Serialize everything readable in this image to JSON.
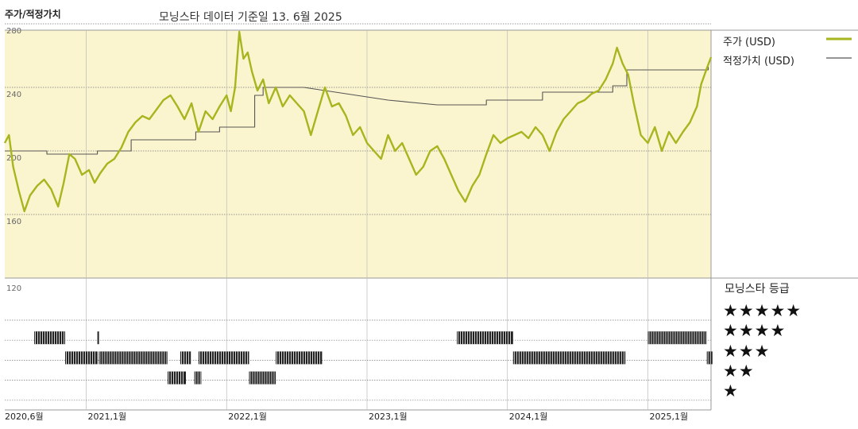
{
  "header": {
    "title": "주가/적정가치",
    "subtitle": "모닝스타 데이터 기준일 13. 6월 2025"
  },
  "legend": {
    "price_label": "주가 (USD)",
    "fair_label": "적정가치 (USD)"
  },
  "rating": {
    "title": "모닝스타 등급",
    "levels": [
      "★★★★★",
      "★★★★",
      "★★★",
      "★★",
      "★"
    ]
  },
  "colors": {
    "price": "#a7b51f",
    "fair_value": "#555555",
    "panel_bg": "#fbf5cf",
    "rating_bar": "#222222"
  },
  "chart_data": {
    "type": "line",
    "title": "주가/적정가치",
    "ylabel": "",
    "ylim": [
      120,
      290
    ],
    "yticks": [
      120,
      160,
      200,
      240,
      280
    ],
    "xticks": [
      "2020,6월",
      "2021,1월",
      "2022,1월",
      "2023,1월",
      "2024,1월",
      "2025,1월"
    ],
    "xtick_values": [
      2020.42,
      2021.0,
      2022.0,
      2023.0,
      2024.0,
      2025.0
    ],
    "xlim": [
      2020.42,
      2025.45
    ],
    "series": [
      {
        "name": "주가 (USD)",
        "points": [
          [
            2020.42,
            205
          ],
          [
            2020.45,
            210
          ],
          [
            2020.48,
            190
          ],
          [
            2020.52,
            175
          ],
          [
            2020.56,
            162
          ],
          [
            2020.6,
            172
          ],
          [
            2020.65,
            178
          ],
          [
            2020.7,
            182
          ],
          [
            2020.75,
            176
          ],
          [
            2020.8,
            165
          ],
          [
            2020.84,
            180
          ],
          [
            2020.88,
            198
          ],
          [
            2020.92,
            195
          ],
          [
            2020.97,
            185
          ],
          [
            2021.02,
            188
          ],
          [
            2021.06,
            180
          ],
          [
            2021.1,
            186
          ],
          [
            2021.15,
            192
          ],
          [
            2021.2,
            195
          ],
          [
            2021.25,
            202
          ],
          [
            2021.3,
            212
          ],
          [
            2021.35,
            218
          ],
          [
            2021.4,
            222
          ],
          [
            2021.45,
            220
          ],
          [
            2021.5,
            226
          ],
          [
            2021.55,
            232
          ],
          [
            2021.6,
            235
          ],
          [
            2021.65,
            228
          ],
          [
            2021.7,
            220
          ],
          [
            2021.75,
            230
          ],
          [
            2021.8,
            212
          ],
          [
            2021.85,
            225
          ],
          [
            2021.9,
            220
          ],
          [
            2021.95,
            228
          ],
          [
            2022.0,
            235
          ],
          [
            2022.03,
            225
          ],
          [
            2022.06,
            240
          ],
          [
            2022.09,
            275
          ],
          [
            2022.12,
            258
          ],
          [
            2022.15,
            262
          ],
          [
            2022.18,
            250
          ],
          [
            2022.22,
            238
          ],
          [
            2022.26,
            245
          ],
          [
            2022.3,
            230
          ],
          [
            2022.35,
            240
          ],
          [
            2022.4,
            228
          ],
          [
            2022.45,
            235
          ],
          [
            2022.5,
            230
          ],
          [
            2022.55,
            225
          ],
          [
            2022.6,
            210
          ],
          [
            2022.65,
            225
          ],
          [
            2022.7,
            240
          ],
          [
            2022.75,
            228
          ],
          [
            2022.8,
            230
          ],
          [
            2022.85,
            222
          ],
          [
            2022.9,
            210
          ],
          [
            2022.95,
            215
          ],
          [
            2023.0,
            205
          ],
          [
            2023.05,
            200
          ],
          [
            2023.1,
            195
          ],
          [
            2023.15,
            210
          ],
          [
            2023.2,
            200
          ],
          [
            2023.25,
            205
          ],
          [
            2023.3,
            195
          ],
          [
            2023.35,
            185
          ],
          [
            2023.4,
            190
          ],
          [
            2023.45,
            200
          ],
          [
            2023.5,
            203
          ],
          [
            2023.55,
            195
          ],
          [
            2023.6,
            185
          ],
          [
            2023.65,
            175
          ],
          [
            2023.7,
            168
          ],
          [
            2023.75,
            178
          ],
          [
            2023.8,
            185
          ],
          [
            2023.85,
            198
          ],
          [
            2023.9,
            210
          ],
          [
            2023.95,
            205
          ],
          [
            2024.0,
            208
          ],
          [
            2024.05,
            210
          ],
          [
            2024.1,
            212
          ],
          [
            2024.15,
            208
          ],
          [
            2024.2,
            215
          ],
          [
            2024.25,
            210
          ],
          [
            2024.3,
            200
          ],
          [
            2024.35,
            212
          ],
          [
            2024.4,
            220
          ],
          [
            2024.45,
            225
          ],
          [
            2024.5,
            230
          ],
          [
            2024.55,
            232
          ],
          [
            2024.6,
            236
          ],
          [
            2024.65,
            238
          ],
          [
            2024.7,
            245
          ],
          [
            2024.75,
            255
          ],
          [
            2024.78,
            265
          ],
          [
            2024.82,
            255
          ],
          [
            2024.86,
            248
          ],
          [
            2024.9,
            230
          ],
          [
            2024.95,
            210
          ],
          [
            2025.0,
            205
          ],
          [
            2025.05,
            215
          ],
          [
            2025.1,
            200
          ],
          [
            2025.15,
            212
          ],
          [
            2025.2,
            205
          ],
          [
            2025.25,
            212
          ],
          [
            2025.3,
            218
          ],
          [
            2025.35,
            228
          ],
          [
            2025.38,
            242
          ],
          [
            2025.42,
            252
          ],
          [
            2025.45,
            259
          ]
        ]
      },
      {
        "name": "적정가치 (USD)",
        "step": true,
        "points": [
          [
            2020.42,
            200
          ],
          [
            2020.72,
            200
          ],
          [
            2020.72,
            198
          ],
          [
            2021.08,
            198
          ],
          [
            2021.08,
            200
          ],
          [
            2021.32,
            200
          ],
          [
            2021.32,
            207
          ],
          [
            2021.78,
            207
          ],
          [
            2021.78,
            212
          ],
          [
            2021.95,
            212
          ],
          [
            2021.95,
            215
          ],
          [
            2022.2,
            215
          ],
          [
            2022.2,
            235
          ],
          [
            2022.26,
            235
          ],
          [
            2022.26,
            240
          ],
          [
            2022.55,
            240
          ],
          [
            2022.85,
            236
          ],
          [
            2023.15,
            232
          ],
          [
            2023.5,
            229
          ],
          [
            2023.85,
            229
          ],
          [
            2023.85,
            232
          ],
          [
            2024.25,
            232
          ],
          [
            2024.25,
            237
          ],
          [
            2024.75,
            237
          ],
          [
            2024.75,
            241
          ],
          [
            2024.85,
            241
          ],
          [
            2024.85,
            251
          ],
          [
            2025.43,
            251
          ],
          [
            2025.43,
            253
          ]
        ]
      }
    ],
    "rating_history": [
      {
        "stars": 4,
        "segments": [
          [
            2020.63,
            2020.85
          ],
          [
            2021.08,
            2021.09
          ],
          [
            2023.64,
            2024.04
          ],
          [
            2025.0,
            2025.42
          ]
        ]
      },
      {
        "stars": 3,
        "segments": [
          [
            2020.85,
            2021.08
          ],
          [
            2021.09,
            2021.58
          ],
          [
            2021.67,
            2021.75
          ],
          [
            2021.8,
            2022.16
          ],
          [
            2022.35,
            2022.68
          ],
          [
            2024.04,
            2024.84
          ],
          [
            2025.42,
            2025.46
          ]
        ]
      },
      {
        "stars": 2,
        "segments": [
          [
            2021.58,
            2021.71
          ],
          [
            2021.77,
            2021.82
          ],
          [
            2022.16,
            2022.35
          ]
        ]
      }
    ]
  }
}
